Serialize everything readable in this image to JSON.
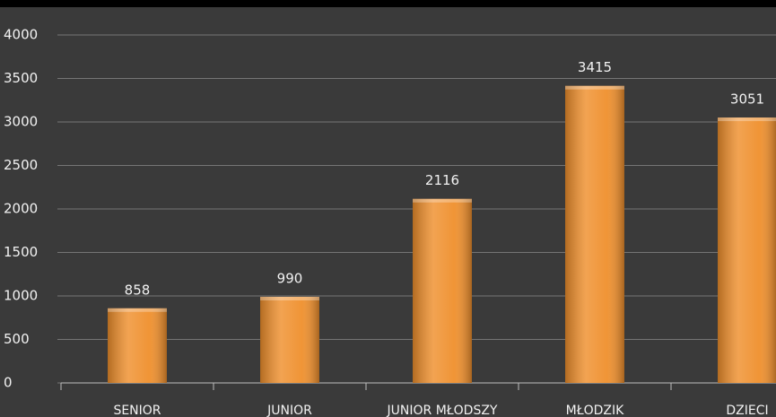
{
  "chart_data": {
    "type": "bar",
    "categories": [
      "SENIOR",
      "JUNIOR",
      "JUNIOR MŁODSZY",
      "MŁODZIK",
      "DZIECI"
    ],
    "values": [
      858,
      990,
      2116,
      3415,
      3051
    ],
    "color": "#ef8f2c",
    "ylim": [
      0,
      4000
    ],
    "yticks": [
      0,
      500,
      1000,
      1500,
      2000,
      2500,
      3000,
      3500,
      4000
    ],
    "grid": true
  }
}
